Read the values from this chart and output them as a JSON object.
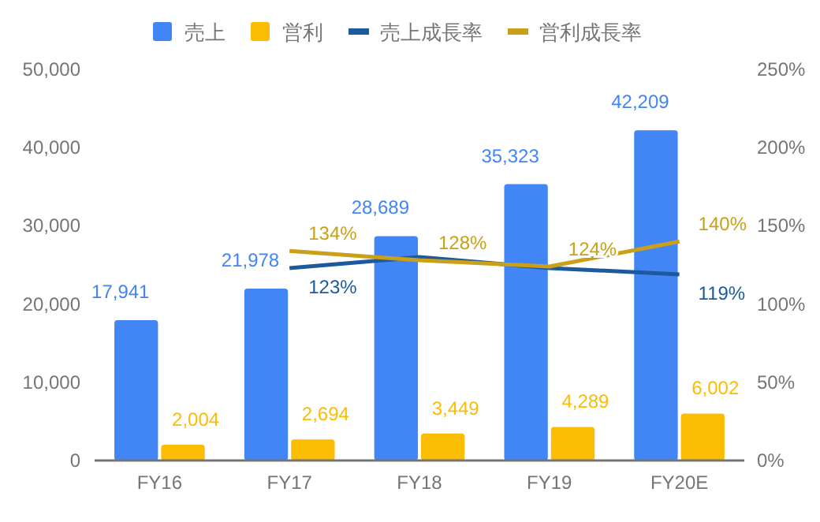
{
  "chart_data": {
    "type": "bar",
    "categories": [
      "FY16",
      "FY17",
      "FY18",
      "FY19",
      "FY20E"
    ],
    "series": [
      {
        "name": "売上",
        "color": "#4285f4",
        "values": [
          17941,
          21978,
          28689,
          35323,
          42209
        ],
        "value_labels": [
          "17,941",
          "21,978",
          "28,689",
          "35,323",
          "42,209"
        ]
      },
      {
        "name": "営利",
        "color": "#fbbc04",
        "values": [
          2004,
          2694,
          3449,
          4289,
          6002
        ],
        "value_labels": [
          "2,004",
          "2,694",
          "3,449",
          "4,289",
          "6,002"
        ]
      },
      {
        "name": "売上成長率",
        "type": "line",
        "axis": "y2",
        "color": "#1c5a9c",
        "values": [
          null,
          123,
          130,
          123,
          119
        ],
        "value_labels": [
          null,
          "123%",
          null,
          null,
          "119%"
        ]
      },
      {
        "name": "営利成長率",
        "type": "line",
        "axis": "y2",
        "color": "#c9a018",
        "values": [
          null,
          134,
          128,
          124,
          140
        ],
        "value_labels": [
          null,
          "134%",
          "128%",
          "124%",
          "140%"
        ]
      }
    ],
    "ylim": [
      0,
      50000
    ],
    "yticks": [
      {
        "value": 0,
        "label": "0"
      },
      {
        "value": 10000,
        "label": "10,000"
      },
      {
        "value": 20000,
        "label": "20,000"
      },
      {
        "value": 30000,
        "label": "30,000"
      },
      {
        "value": 40000,
        "label": "40,000"
      },
      {
        "value": 50000,
        "label": "50,000"
      }
    ],
    "y2lim": [
      0,
      250
    ],
    "y2ticks": [
      {
        "value": 0,
        "label": "0%"
      },
      {
        "value": 50,
        "label": "50%"
      },
      {
        "value": 100,
        "label": "100%"
      },
      {
        "value": 150,
        "label": "150%"
      },
      {
        "value": 200,
        "label": "200%"
      },
      {
        "value": 250,
        "label": "250%"
      }
    ],
    "grid": false,
    "legend": "top",
    "marker": "none"
  }
}
